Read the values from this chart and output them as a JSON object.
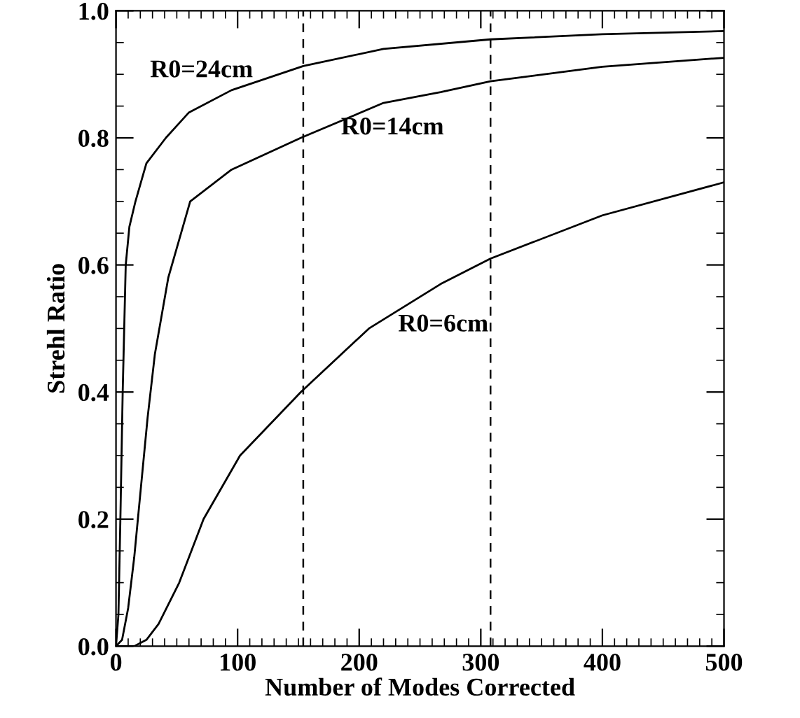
{
  "chart_data": {
    "type": "line",
    "xlabel": "Number of Modes Corrected",
    "ylabel": "Strehl Ratio",
    "xlim": [
      0,
      500
    ],
    "ylim": [
      0,
      1
    ],
    "xticks": [
      0,
      100,
      200,
      300,
      400,
      500
    ],
    "yticks": [
      {
        "value": 0,
        "label": "0.0"
      },
      {
        "value": 0.2,
        "label": "0.2"
      },
      {
        "value": 0.4,
        "label": "0.4"
      },
      {
        "value": 0.6,
        "label": "0.6"
      },
      {
        "value": 0.8,
        "label": "0.8"
      },
      {
        "value": 1,
        "label": "1.0"
      }
    ],
    "grid": false,
    "legend": false,
    "marker": "none",
    "line_style": "solid",
    "series": [
      {
        "name": "R0=24cm",
        "color": "#000000",
        "x": [
          0,
          2,
          3.6,
          5.5,
          8,
          11,
          16,
          25,
          41,
          60,
          95,
          154,
          220,
          308,
          400,
          500
        ],
        "values": [
          0,
          0.05,
          0.2,
          0.4,
          0.6,
          0.66,
          0.7,
          0.76,
          0.8,
          0.84,
          0.875,
          0.913,
          0.94,
          0.955,
          0.963,
          0.968
        ]
      },
      {
        "name": "R0=14cm",
        "color": "#000000",
        "x": [
          0,
          5,
          10,
          15,
          20,
          26,
          32,
          43,
          61,
          95,
          152,
          220,
          267,
          308,
          400,
          500
        ],
        "values": [
          0,
          0.01,
          0.06,
          0.14,
          0.24,
          0.36,
          0.46,
          0.58,
          0.7,
          0.75,
          0.8,
          0.855,
          0.872,
          0.889,
          0.912,
          0.926
        ]
      },
      {
        "name": "R0=6cm",
        "color": "#000000",
        "x": [
          0,
          15,
          25,
          35,
          52,
          72,
          102,
          152,
          208,
          267,
          308,
          400,
          500
        ],
        "values": [
          0,
          0,
          0.01,
          0.035,
          0.1,
          0.2,
          0.3,
          0.4,
          0.5,
          0.57,
          0.61,
          0.678,
          0.73
        ]
      }
    ],
    "ref_lines": [
      {
        "axis": "x",
        "value": 154,
        "line_style": "dashed",
        "color": "#000000"
      },
      {
        "axis": "x",
        "value": 308,
        "line_style": "dashed",
        "color": "#000000"
      }
    ]
  }
}
